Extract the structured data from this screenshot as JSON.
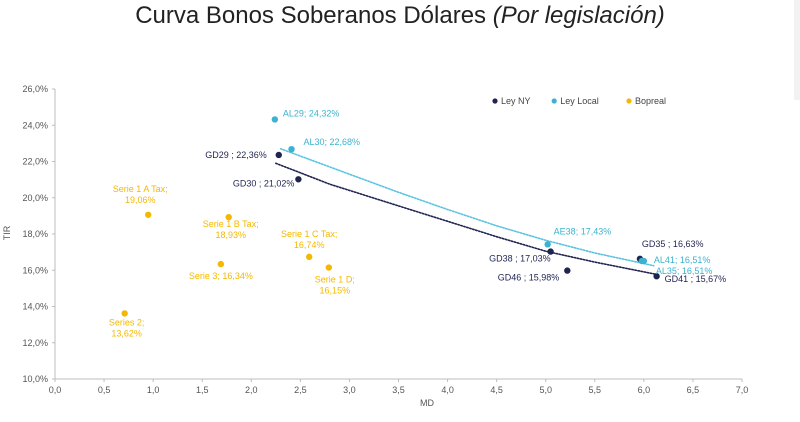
{
  "chart_data": {
    "type": "scatter",
    "title": "Curva Bonos Soberanos Dólares",
    "subtitle": "(Por legislación)",
    "xlabel": "MD",
    "ylabel": "TIR",
    "xlim": [
      0,
      7
    ],
    "ylim": [
      10,
      26
    ],
    "x_ticks": [
      "0,0",
      "0,5",
      "1,0",
      "1,5",
      "2,0",
      "2,5",
      "3,0",
      "3,5",
      "4,0",
      "4,5",
      "5,0",
      "5,5",
      "6,0",
      "6,5",
      "7,0"
    ],
    "y_ticks": [
      "10,0%",
      "12,0%",
      "14,0%",
      "16,0%",
      "18,0%",
      "20,0%",
      "22,0%",
      "24,0%",
      "26,0%"
    ],
    "legend_position": "top-right",
    "series": [
      {
        "name": "Ley NY",
        "color": "#1f2451",
        "points": [
          {
            "x": 2.28,
            "y": 22.36,
            "label": "GD29 ; 22,36%",
            "anchor": "end",
            "dx": -12,
            "dy": 3
          },
          {
            "x": 2.48,
            "y": 21.02,
            "label": "GD30 ; 21,02%",
            "anchor": "end",
            "dx": -4,
            "dy": 7
          },
          {
            "x": 5.05,
            "y": 17.03,
            "label": "GD38 ; 17,03%",
            "anchor": "end",
            "dx": 0,
            "dy": 10
          },
          {
            "x": 5.22,
            "y": 15.98,
            "label": "GD46 ; 15,98%",
            "anchor": "end",
            "dx": -8,
            "dy": 10
          },
          {
            "x": 6.13,
            "y": 15.67,
            "label": "GD41 ; 15,67%",
            "anchor": "start",
            "dx": 8,
            "dy": 6
          },
          {
            "x": 5.96,
            "y": 16.63,
            "label": "GD35 ; 16,63%",
            "anchor": "start",
            "dx": 2,
            "dy": -12
          }
        ]
      },
      {
        "name": "Ley Local",
        "color": "#3bb3d0",
        "points": [
          {
            "x": 2.24,
            "y": 24.32,
            "label": "AL29; 24,32%",
            "anchor": "start",
            "dx": 8,
            "dy": -3
          },
          {
            "x": 2.41,
            "y": 22.68,
            "label": "AL30; 22,68%",
            "anchor": "start",
            "dx": 12,
            "dy": -4
          },
          {
            "x": 5.02,
            "y": 17.43,
            "label": "AE38; 17,43%",
            "anchor": "start",
            "dx": 6,
            "dy": -10
          },
          {
            "x": 6.0,
            "y": 16.51,
            "label": "AL41; 16,51%",
            "anchor": "start",
            "dx": 10,
            "dy": 2
          },
          {
            "x": 5.98,
            "y": 16.51,
            "label": "AL35; 16,51%",
            "anchor": "start",
            "dx": 14,
            "dy": 13
          }
        ]
      },
      {
        "name": "Bopreal",
        "color": "#f5b800",
        "points": [
          {
            "x": 0.95,
            "y": 19.06,
            "label": [
              "Serie 1 A Tax;",
              "19,06%"
            ],
            "anchor": "middle",
            "dx": -8,
            "dy": -23
          },
          {
            "x": 1.77,
            "y": 18.93,
            "label": [
              "Serie 1 B Tax;",
              "18,93%"
            ],
            "anchor": "middle",
            "dx": 2,
            "dy": 10
          },
          {
            "x": 2.59,
            "y": 16.74,
            "label": [
              "Serie 1 C Tax;",
              "16,74%"
            ],
            "anchor": "middle",
            "dx": 0,
            "dy": -20
          },
          {
            "x": 1.69,
            "y": 16.34,
            "label": "Serie 3; 16,34%",
            "anchor": "middle",
            "dx": 0,
            "dy": 15
          },
          {
            "x": 2.79,
            "y": 16.15,
            "label": [
              "Serie 1 D;",
              "16,15%"
            ],
            "anchor": "middle",
            "dx": 6,
            "dy": 15
          },
          {
            "x": 0.71,
            "y": 13.62,
            "label": [
              "Series 2;",
              "13,62%"
            ],
            "anchor": "middle",
            "dx": 2,
            "dy": 12
          }
        ]
      }
    ],
    "trendlines": [
      {
        "series": "Ley Local",
        "color": "#5bc3e0",
        "style": "dotted",
        "x_range": [
          2.3,
          6.1
        ],
        "points": [
          [
            2.3,
            22.7
          ],
          [
            3.0,
            21.3
          ],
          [
            3.5,
            20.3
          ],
          [
            4.0,
            19.35
          ],
          [
            4.5,
            18.45
          ],
          [
            5.0,
            17.65
          ],
          [
            5.5,
            16.95
          ],
          [
            6.1,
            16.25
          ]
        ]
      },
      {
        "series": "Ley NY",
        "color": "#1f2451",
        "style": "dotted",
        "x_range": [
          2.25,
          6.15
        ],
        "points": [
          [
            2.25,
            21.9
          ],
          [
            2.8,
            20.75
          ],
          [
            3.5,
            19.55
          ],
          [
            4.0,
            18.7
          ],
          [
            4.5,
            17.85
          ],
          [
            5.0,
            17.05
          ],
          [
            5.5,
            16.45
          ],
          [
            6.15,
            15.75
          ]
        ]
      }
    ]
  }
}
